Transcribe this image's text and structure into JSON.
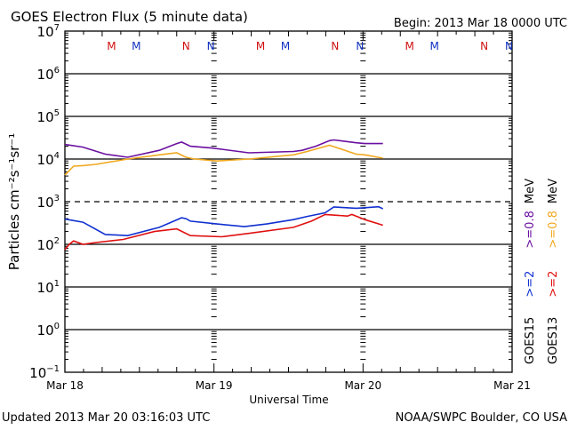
{
  "chart_data": {
    "type": "line",
    "title": "GOES Electron Flux (5 minute data)",
    "begin_label": "Begin: 2013 Mar 18 0000 UTC",
    "xlabel": "Universal Time",
    "ylabel": "Particles cm⁻²s⁻¹sr⁻¹",
    "x_units": "hours since 2013 Mar 18 00:00 UTC",
    "xlim": [
      0,
      72
    ],
    "x_tick_labels": [
      "Mar 18",
      "Mar 19",
      "Mar 20",
      "Mar 21"
    ],
    "y_scale": "log",
    "ylim": [
      0.1,
      10000000
    ],
    "y_tick_labels": [
      {
        "base": "10",
        "exp": "7"
      },
      {
        "base": "10",
        "exp": "6"
      },
      {
        "base": "10",
        "exp": "5"
      },
      {
        "base": "10",
        "exp": "4"
      },
      {
        "base": "10",
        "exp": "3"
      },
      {
        "base": "10",
        "exp": "2"
      },
      {
        "base": "10",
        "exp": "1"
      },
      {
        "base": "10",
        "exp": "0"
      },
      {
        "base": "10",
        "exp": "−1"
      }
    ],
    "threshold_dashed": 1000,
    "local_time_markers": [
      {
        "label": "M",
        "color": "#d01010",
        "hours": [
          7.5,
          31.5,
          55.5
        ]
      },
      {
        "label": "M",
        "color": "#1030c0",
        "hours": [
          11.5,
          35.5,
          59.5
        ]
      },
      {
        "label": "N",
        "color": "#d01010",
        "hours": [
          19.5,
          43.5,
          67.5
        ]
      },
      {
        "label": "N",
        "color": "#1030c0",
        "hours": [
          23.5,
          47.5,
          71.5
        ]
      }
    ],
    "series": [
      {
        "name": "GOES15 >=0.8 MeV",
        "color": "#6a0fa0",
        "x": [
          0,
          2.9,
          6.5,
          10.1,
          15.2,
          18,
          18.8,
          20.2,
          23.8,
          29.6,
          36.8,
          38.2,
          40.4,
          42.6,
          43.3,
          46.9,
          48.3,
          51.2
        ],
        "y": [
          22000,
          19000,
          13000,
          11000,
          16000,
          23000,
          25000,
          20000,
          18000,
          14000,
          15000,
          16000,
          20000,
          27000,
          28000,
          24000,
          23000,
          23000
        ]
      },
      {
        "name": "GOES13 >=0.8 MeV",
        "color": "#f0a820",
        "x": [
          0,
          1.4,
          2.9,
          5,
          10.1,
          15.2,
          18,
          19.5,
          20.9,
          24.5,
          29.6,
          36.8,
          39,
          42.6,
          44,
          46.9,
          48.3,
          51.2
        ],
        "y": [
          4200,
          6800,
          7000,
          7500,
          10000,
          12500,
          14000,
          11000,
          10000,
          9000,
          10000,
          12500,
          15000,
          21000,
          18000,
          13000,
          12500,
          10500
        ]
      },
      {
        "name": "GOES15 >=2 MeV",
        "color": "#1030d0",
        "x": [
          0,
          2.9,
          6.5,
          10.1,
          15.2,
          18.8,
          19.5,
          20.2,
          24.5,
          28.9,
          32.5,
          36.8,
          39,
          41.9,
          43.3,
          46.9,
          48.3,
          50.5,
          51.2
        ],
        "y": [
          390,
          330,
          170,
          160,
          250,
          420,
          400,
          350,
          300,
          260,
          300,
          380,
          450,
          550,
          750,
          700,
          720,
          760,
          680
        ]
      },
      {
        "name": "GOES13 >=2 MeV",
        "color": "#e01010",
        "x": [
          0,
          0.7,
          1.4,
          2.9,
          5,
          9.4,
          14.4,
          18,
          20.2,
          25.3,
          29.6,
          36.8,
          39.7,
          41.9,
          45.5,
          46.2,
          48.3,
          51.2
        ],
        "y": [
          75,
          100,
          120,
          100,
          110,
          130,
          200,
          230,
          160,
          150,
          180,
          250,
          350,
          500,
          460,
          500,
          380,
          280
        ]
      }
    ],
    "legend": {
      "placement": "right",
      "columns": [
        {
          "sat": "GOES15",
          "entries": [
            {
              "text": ">=2",
              "color": "#1030d0"
            },
            {
              "text": ">=0.8",
              "color": "#6a0fa0"
            }
          ],
          "unit": "MeV"
        },
        {
          "sat": "GOES13",
          "entries": [
            {
              "text": ">=2",
              "color": "#e01010"
            },
            {
              "text": ">=0.8",
              "color": "#f0a820"
            }
          ],
          "unit": "MeV"
        }
      ]
    }
  },
  "footer": {
    "updated": "Updated 2013 Mar 20 03:16:03 UTC",
    "source": "NOAA/SWPC Boulder, CO USA"
  }
}
